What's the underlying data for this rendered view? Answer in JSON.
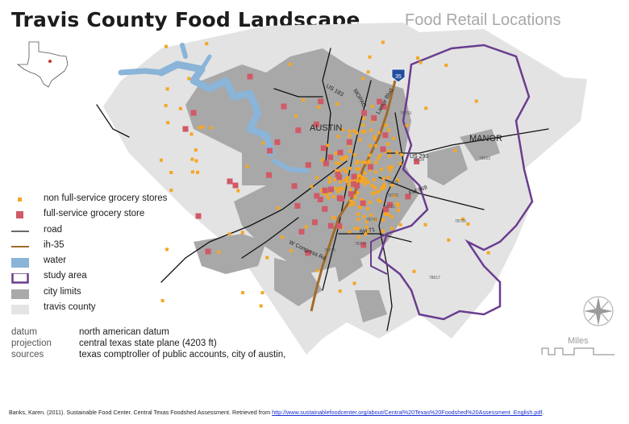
{
  "title": "Travis County Food Landscape",
  "subtitle": "Food Retail Locations",
  "map_labels": {
    "austin": "AUSTIN",
    "manor": "MANOR",
    "us183": "US 183",
    "mopac": "MOPAC",
    "lamar": "Lamar Blvd",
    "us290": "US 290",
    "fm969": "FM 969",
    "sh71": "SH 71",
    "w_congress": "W Congress Rd",
    "interstate": "35",
    "zips": [
      "78753",
      "78724",
      "78722",
      "78723",
      "78721",
      "78741",
      "78745",
      "78744",
      "78653",
      "78725",
      "78617"
    ]
  },
  "legend": [
    {
      "label": "non full-service grocery stores",
      "symbol": "orange-square",
      "color": "#f5a623"
    },
    {
      "label": "full-service grocery store",
      "symbol": "red-square",
      "color": "#d05a67"
    },
    {
      "label": "road",
      "symbol": "black-line",
      "color": "#111111"
    },
    {
      "label": "ih-35",
      "symbol": "brown-line",
      "color": "#a06b2a"
    },
    {
      "label": "water",
      "symbol": "blue-square",
      "color": "#8ab4d8"
    },
    {
      "label": "study area",
      "symbol": "purple-outline",
      "color": "#6a3d8f"
    },
    {
      "label": "city limits",
      "symbol": "gray-square",
      "color": "#a9a9a9"
    },
    {
      "label": "travis county",
      "symbol": "lightgray-square",
      "color": "#e4e4e4"
    }
  ],
  "metadata": [
    {
      "key": "datum",
      "value": "north american datum"
    },
    {
      "key": "projection",
      "value": "central texas state plane (4203 ft)"
    },
    {
      "key": "sources",
      "value": "texas comptroller of public accounts, city of austin,"
    }
  ],
  "citation": {
    "text": "Banks, Karen. (2011). Sustainable Food Center. Central Texas Foodshed Assessment. Retrieved from ",
    "link": "http://www.sustainablefoodcenter.org/about/Central%20Texas%20Foodshed%20Assessment_English.pdf",
    "end": "."
  },
  "scale_label": "Miles",
  "compass_icon": "compass-rose-icon",
  "inset_icon": "texas-locator-icon"
}
